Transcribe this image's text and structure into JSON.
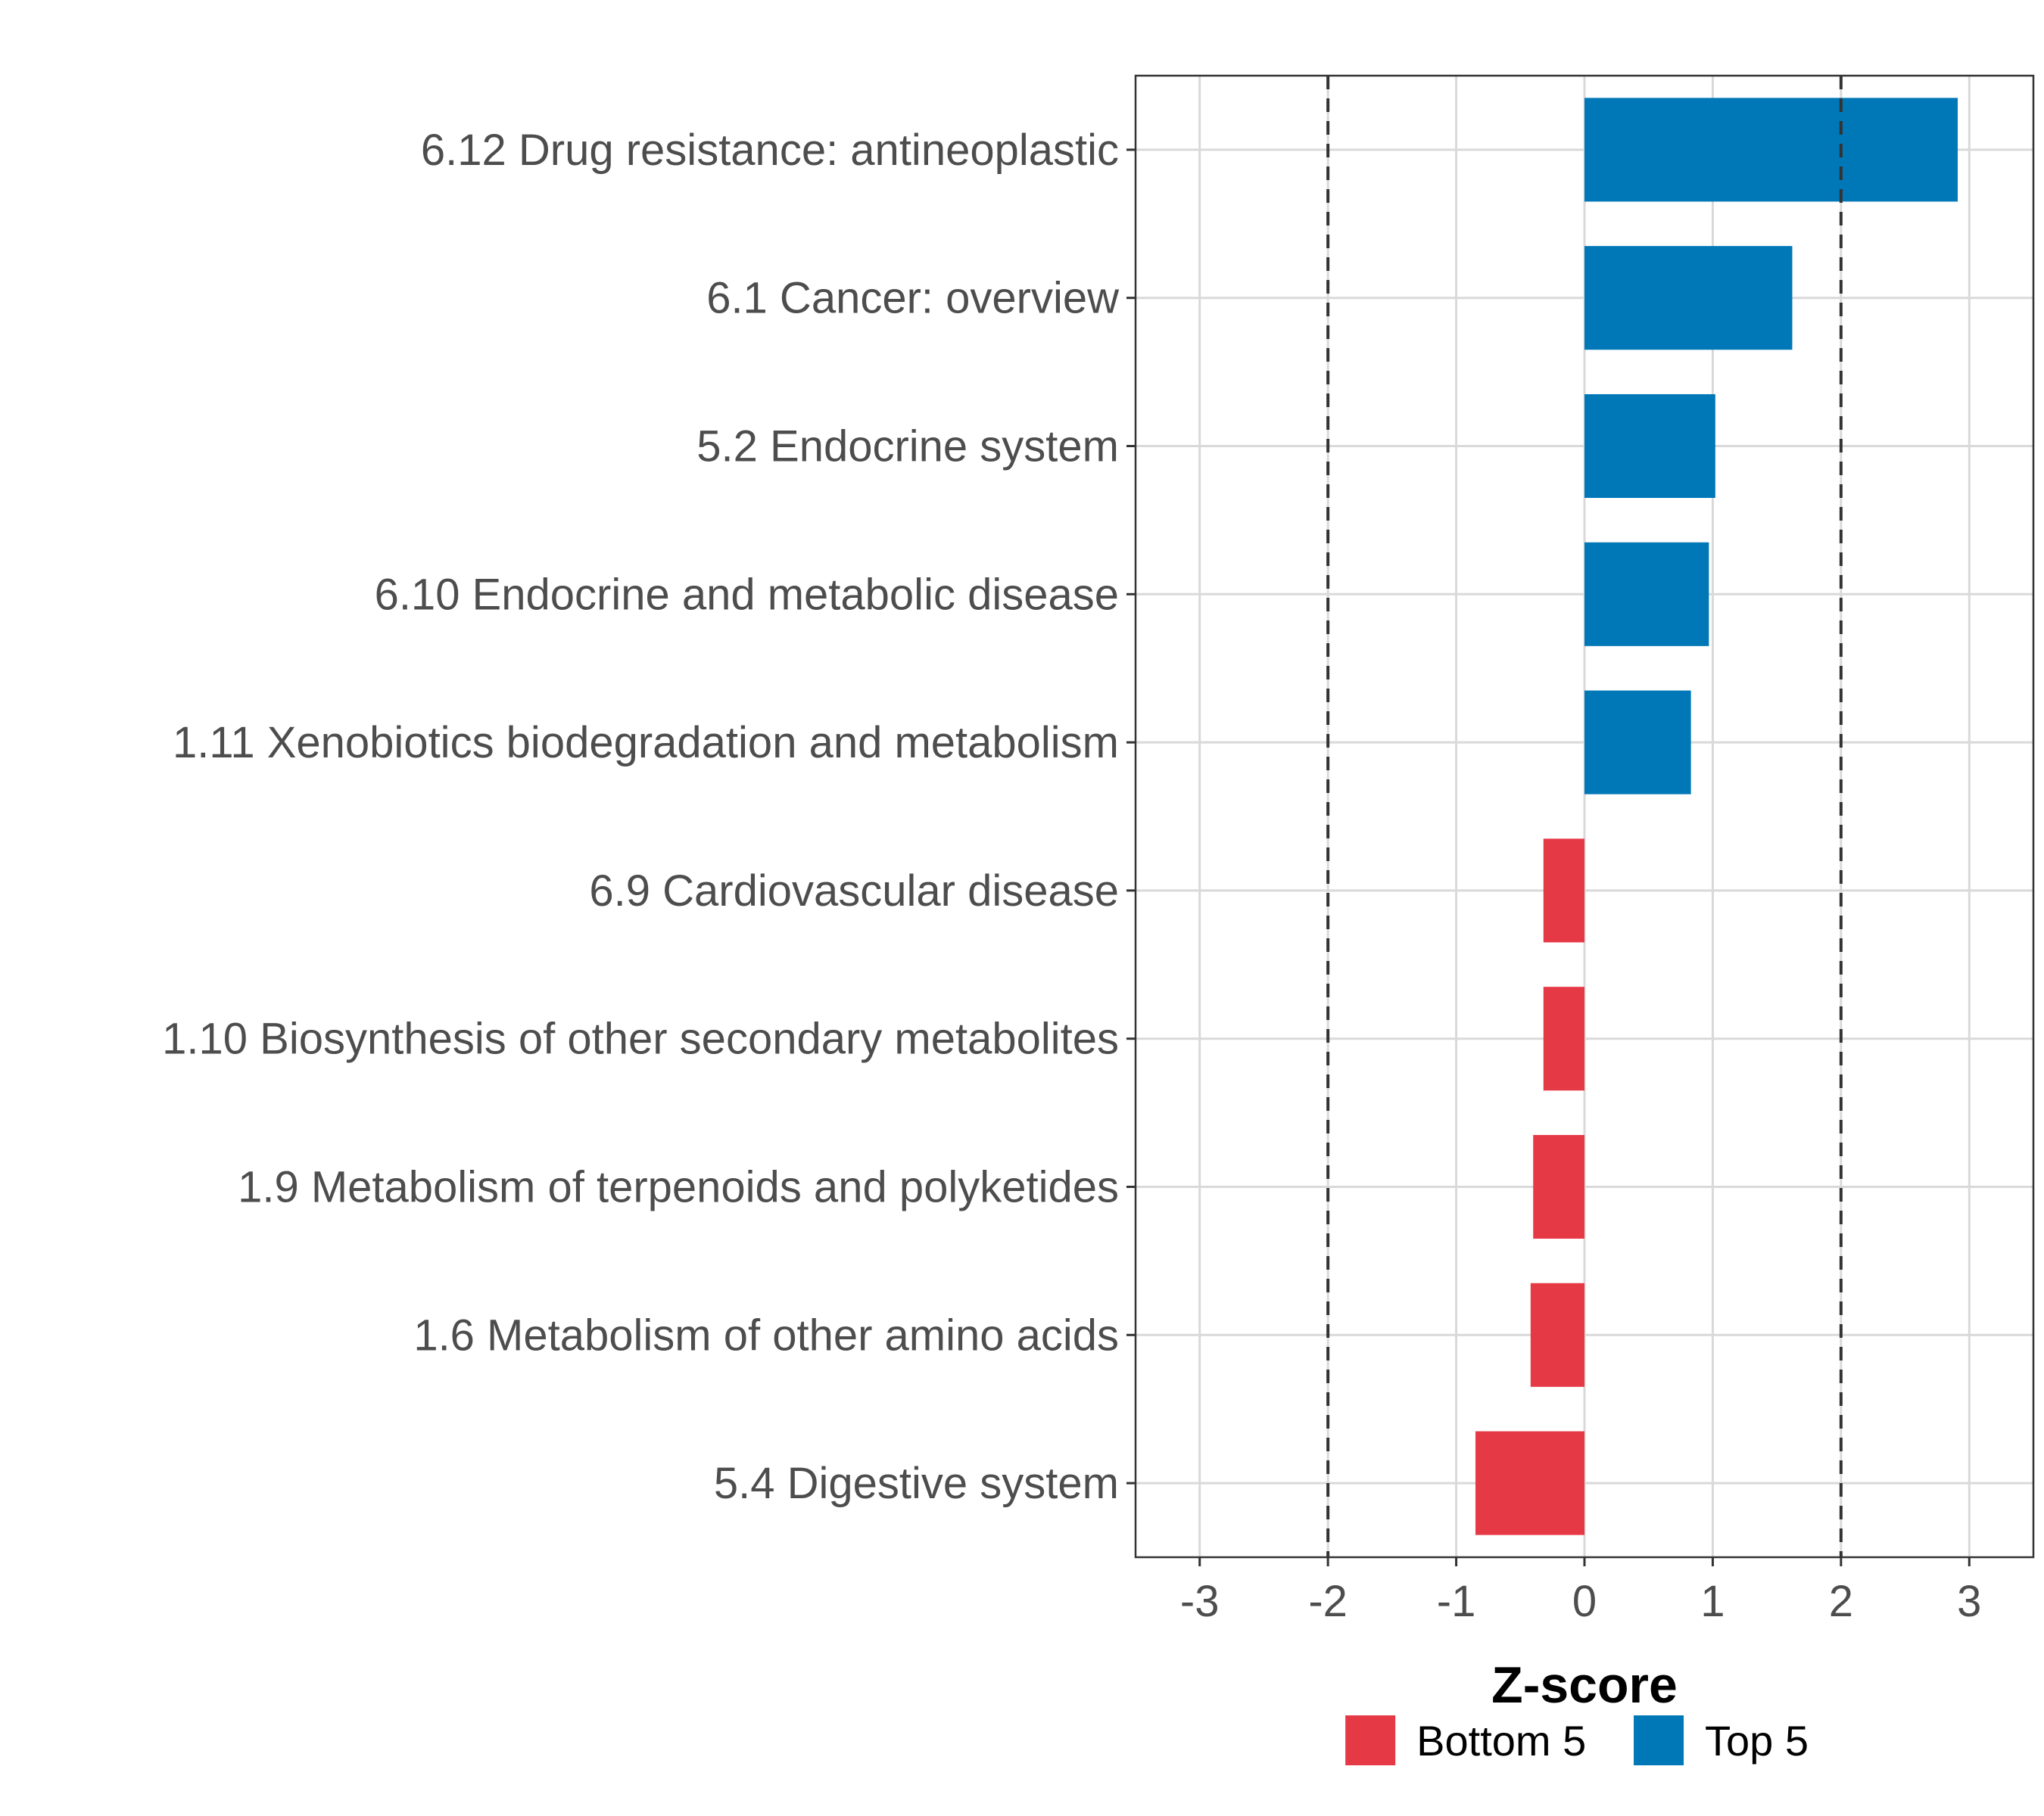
{
  "chart_data": {
    "type": "bar",
    "orientation": "horizontal",
    "categories": [
      "6.12 Drug resistance: antineoplastic",
      "6.1 Cancer: overview",
      "5.2 Endocrine system",
      "6.10 Endocrine and metabolic disease",
      "1.11 Xenobiotics biodegradation and metabolism",
      "6.9 Cardiovascular disease",
      "1.10 Biosynthesis of other secondary metabolites",
      "1.9 Metabolism of terpenoids and polyketides",
      "1.6 Metabolism of other amino acids",
      "5.4 Digestive system"
    ],
    "values": [
      2.91,
      1.62,
      1.02,
      0.97,
      0.83,
      -0.32,
      -0.32,
      -0.4,
      -0.42,
      -0.85
    ],
    "groups": [
      "Top 5",
      "Top 5",
      "Top 5",
      "Top 5",
      "Top 5",
      "Bottom 5",
      "Bottom 5",
      "Bottom 5",
      "Bottom 5",
      "Bottom 5"
    ],
    "xlabel": "Z-score",
    "xlim": [
      -3.5,
      3.5
    ],
    "xticks": [
      -3,
      -2,
      -1,
      0,
      1,
      2,
      3
    ],
    "xtick_labels": [
      "-3",
      "-2",
      "-1",
      "0",
      "1",
      "2",
      "3"
    ],
    "reference_lines": [
      -2,
      2
    ],
    "grid": true,
    "legend": {
      "position": "bottom",
      "entries": [
        {
          "label": "Bottom 5",
          "color": "#e63946"
        },
        {
          "label": "Top 5",
          "color": "#0077b6"
        }
      ]
    }
  }
}
